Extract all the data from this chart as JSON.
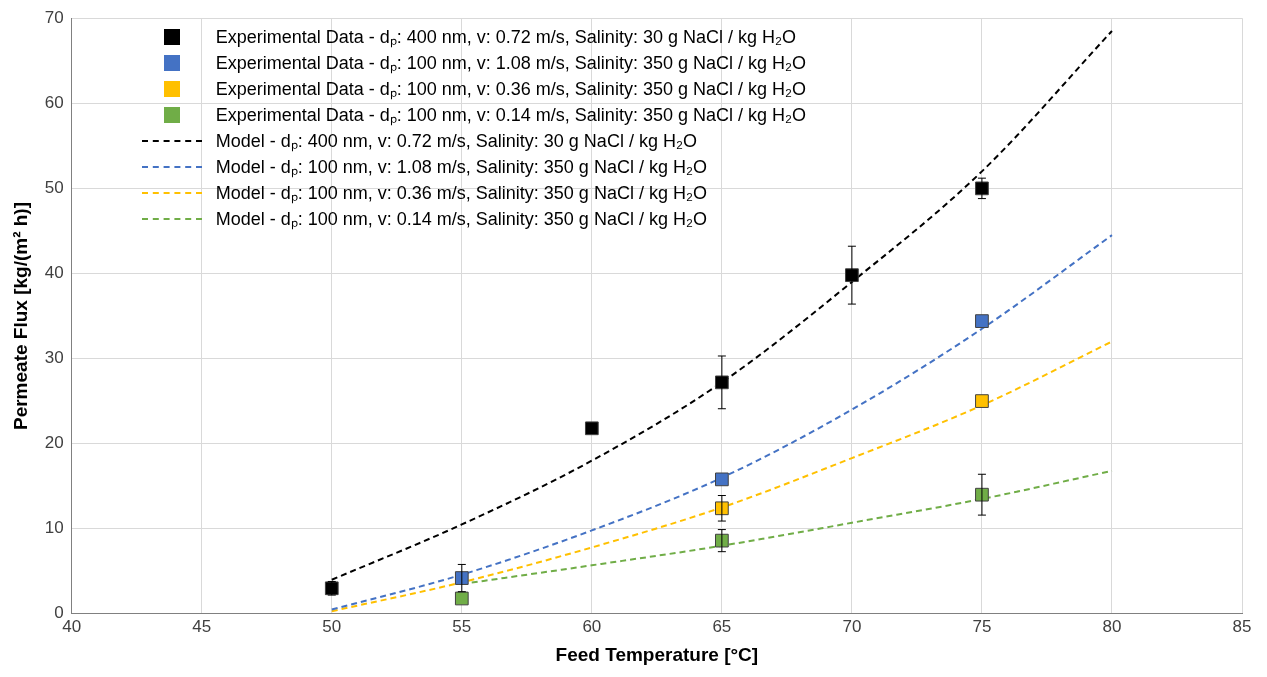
{
  "chart_data": {
    "type": "scatter",
    "xlabel": "Feed Temperature [°C]",
    "ylabel": "Permeate Flux [kg/(m² h)]",
    "xlim": [
      40,
      85
    ],
    "xticks": [
      40,
      45,
      50,
      55,
      60,
      65,
      70,
      75,
      80,
      85
    ],
    "ylim": [
      0,
      70
    ],
    "yticks": [
      0,
      10,
      20,
      30,
      40,
      50,
      60,
      70
    ],
    "grid": true,
    "legend": "top left",
    "series": [
      {
        "name": "Experimental Data - dₚ: 400 nm, v: 0.72 m/s, Salinity: 30 g NaCl / kg H₂O",
        "marker": "square",
        "color": "#000000",
        "x": [
          50,
          60,
          65,
          70,
          75
        ],
        "values": [
          3.0,
          21.8,
          27.2,
          39.8,
          50.0
        ],
        "errors": [
          0.8,
          null,
          3.1,
          3.4,
          1.2
        ]
      },
      {
        "name": "Experimental Data - dₚ: 100 nm, v: 1.08 m/s, Salinity: 350 g NaCl / kg H₂O",
        "marker": "square",
        "color": "#4472c4",
        "x": [
          55,
          65,
          75
        ],
        "values": [
          4.2,
          15.8,
          34.4
        ],
        "errors": [
          1.6,
          null,
          null
        ]
      },
      {
        "name": "Experimental Data - dₚ: 100 nm, v: 0.36 m/s, Salinity: 350 g NaCl / kg H₂O",
        "marker": "square",
        "color": "#ffc000",
        "x": [
          65,
          75
        ],
        "values": [
          12.4,
          25.0
        ],
        "errors": [
          1.5,
          null
        ]
      },
      {
        "name": "Experimental Data - dₚ: 100 nm, v: 0.14 m/s, Salinity: 350 g NaCl / kg H₂O",
        "marker": "square",
        "color": "#70ad47",
        "x": [
          55,
          65,
          75
        ],
        "values": [
          1.8,
          8.6,
          14.0
        ],
        "errors": [
          null,
          1.3,
          2.4
        ]
      },
      {
        "name": "Model - dₚ: 400 nm, v: 0.72 m/s, Salinity: 30 g NaCl / kg H₂O",
        "type": "line",
        "marker": "none",
        "line_style": "dashed",
        "color": "#000000",
        "x": [
          50,
          55,
          60,
          65,
          70,
          75,
          80
        ],
        "values": [
          4.0,
          10.5,
          18.0,
          27.2,
          39.0,
          52.0,
          68.5
        ]
      },
      {
        "name": "Model - dₚ: 100 nm, v: 1.08 m/s, Salinity: 350 g NaCl / kg H₂O",
        "type": "line",
        "marker": "none",
        "line_style": "dashed",
        "color": "#4472c4",
        "x": [
          50,
          55,
          60,
          65,
          70,
          75,
          80
        ],
        "values": [
          0.5,
          4.6,
          9.8,
          16.0,
          24.0,
          33.5,
          44.5
        ]
      },
      {
        "name": "Model - dₚ: 100 nm, v: 0.36 m/s, Salinity: 350 g NaCl / kg H₂O",
        "type": "line",
        "marker": "none",
        "line_style": "dashed",
        "color": "#ffc000",
        "x": [
          50,
          55,
          60,
          65,
          70,
          75,
          80
        ],
        "values": [
          0.3,
          3.7,
          7.8,
          12.5,
          18.3,
          24.5,
          32.0
        ]
      },
      {
        "name": "Model - dₚ: 100 nm, v: 0.14 m/s, Salinity: 350 g NaCl / kg H₂O",
        "type": "line",
        "marker": "none",
        "line_style": "dashed",
        "color": "#70ad47",
        "x": [
          55,
          60,
          65,
          70,
          75,
          80
        ],
        "values": [
          3.5,
          5.7,
          8.0,
          10.7,
          13.5,
          16.8
        ]
      }
    ]
  }
}
